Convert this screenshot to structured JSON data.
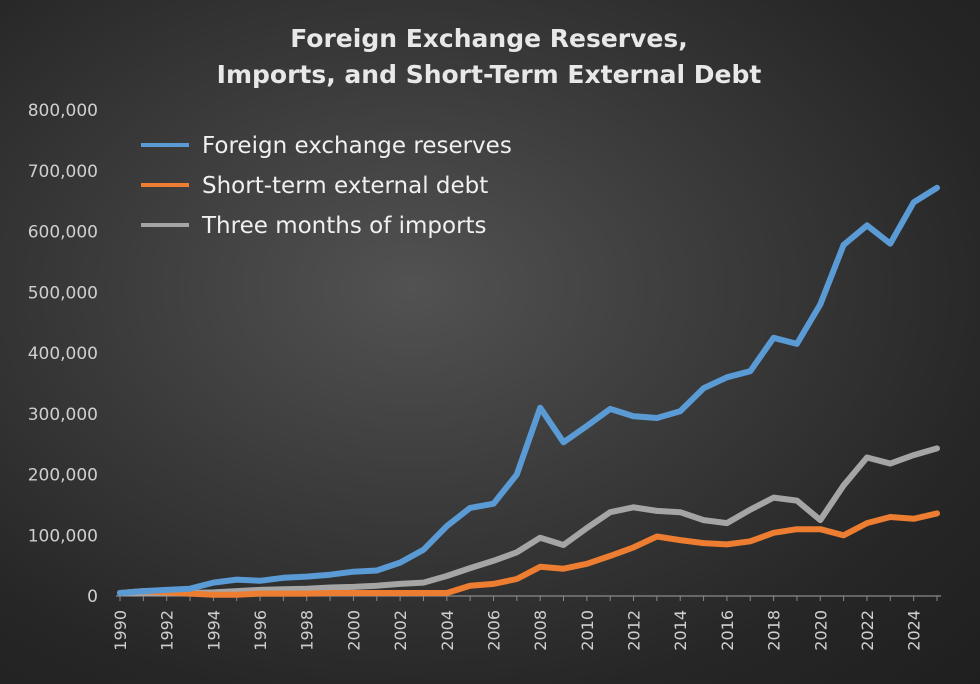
{
  "chart_data": {
    "type": "line",
    "title": [
      "Foreign Exchange Reserves,",
      "Imports, and Short-Term External Debt"
    ],
    "xlabel": "",
    "ylabel": "",
    "xlim": [
      1990,
      2025
    ],
    "ylim": [
      0,
      800000
    ],
    "yticks": [
      0,
      100000,
      200000,
      300000,
      400000,
      500000,
      600000,
      700000,
      800000
    ],
    "ytick_labels": [
      "0",
      "100,000",
      "200,000",
      "300,000",
      "400,000",
      "500,000",
      "600,000",
      "700,000",
      "800,000"
    ],
    "xticks": [
      "1990",
      "1992",
      "1994",
      "1996",
      "1998",
      "2000",
      "2002",
      "2004",
      "2006",
      "2008",
      "2010",
      "2012",
      "2014",
      "2016",
      "2018",
      "2020",
      "2022",
      "2024"
    ],
    "grid": false,
    "legend_position": "top-left",
    "x": [
      1990,
      1991,
      1992,
      1993,
      1994,
      1995,
      1996,
      1997,
      1998,
      1999,
      2000,
      2001,
      2002,
      2003,
      2004,
      2005,
      2006,
      2007,
      2008,
      2009,
      2010,
      2011,
      2012,
      2013,
      2014,
      2015,
      2016,
      2017,
      2018,
      2019,
      2020,
      2021,
      2022,
      2023,
      2024,
      2025
    ],
    "series": [
      {
        "name": "Foreign exchange reserves",
        "color": "#5b9bd5",
        "values": [
          5000,
          8000,
          10000,
          12000,
          22000,
          27000,
          25000,
          30000,
          32000,
          35000,
          40000,
          42000,
          55000,
          76000,
          115000,
          145000,
          152000,
          200000,
          310000,
          253000,
          280000,
          308000,
          296000,
          293000,
          304000,
          342000,
          360000,
          370000,
          425000,
          415000,
          480000,
          578000,
          610000,
          580000,
          648000,
          672000
        ]
      },
      {
        "name": "Short-term external debt",
        "color": "#ed7d31",
        "values": [
          5000,
          8000,
          6000,
          4000,
          2000,
          2000,
          4000,
          4000,
          4000,
          5000,
          5000,
          5000,
          5000,
          5000,
          5000,
          17000,
          20000,
          28000,
          48000,
          45000,
          53000,
          66000,
          80000,
          98000,
          92000,
          87000,
          85000,
          90000,
          104000,
          110000,
          110000,
          100000,
          120000,
          130000,
          127000,
          136000
        ]
      },
      {
        "name": "Three months of imports",
        "color": "#a5a5a5",
        "values": [
          5000,
          5000,
          5000,
          5000,
          6000,
          8000,
          10000,
          11000,
          12000,
          14000,
          15000,
          17000,
          20000,
          22000,
          33000,
          46000,
          58000,
          72000,
          96000,
          84000,
          112000,
          138000,
          146000,
          140000,
          138000,
          125000,
          120000,
          142000,
          162000,
          157000,
          125000,
          182000,
          228000,
          218000,
          232000,
          243000
        ]
      }
    ]
  }
}
